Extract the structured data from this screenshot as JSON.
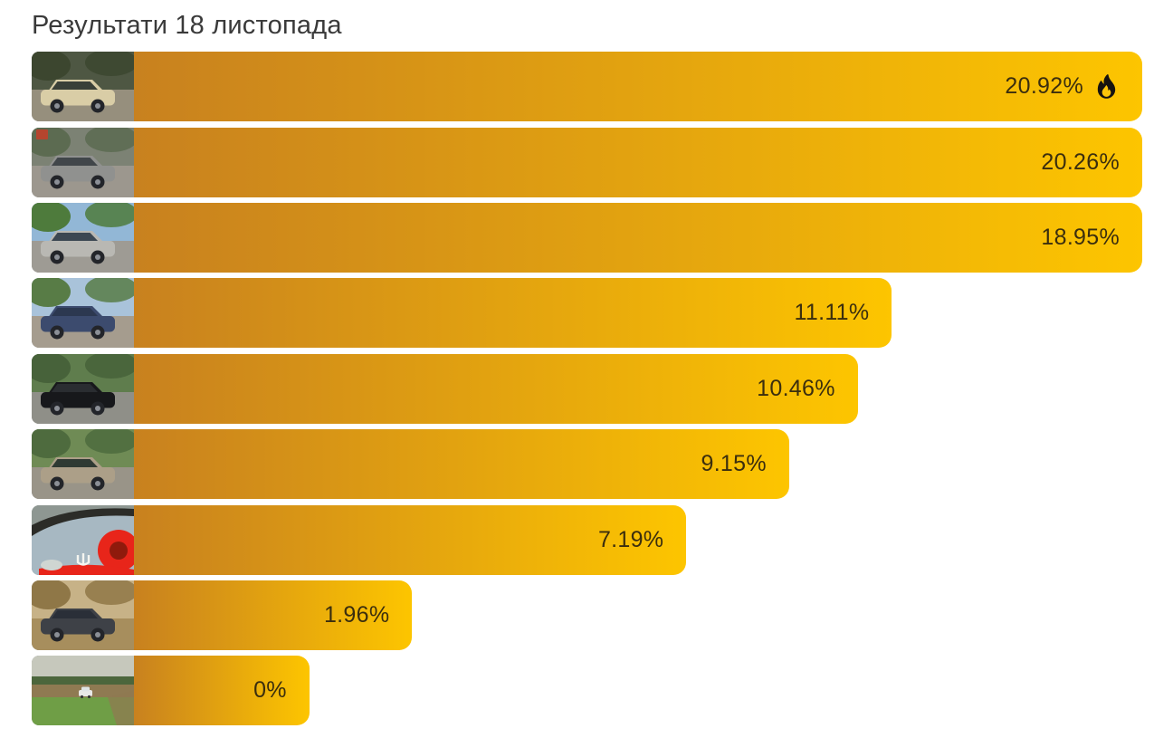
{
  "title": "Результати 18 листопада",
  "chart_data": {
    "type": "bar",
    "orientation": "horizontal",
    "title": "Результати 18 листопада",
    "unit": "%",
    "xlim": [
      0,
      20.92
    ],
    "grid": false,
    "legend": "none",
    "bar_gradient": [
      "#c8811f",
      "#fdc500"
    ],
    "label_color": "#3b2e0e",
    "bar_base_pct": 17.4,
    "bar_scale_pct": 5.2,
    "categories": [
      "beige-sedan-forest-road",
      "grey-golf-hatchback-street",
      "silver-bmw-suv-trees",
      "dark-blue-coupe-pavement",
      "black-hatchback-green-road",
      "beige-sedan-bushes",
      "blue-grey-car-red-wheel-closeup",
      "grey-wagon-autumn-field",
      "distant-white-car-in-field"
    ],
    "values": [
      20.92,
      20.26,
      18.95,
      11.11,
      10.46,
      9.15,
      7.19,
      1.96,
      0
    ],
    "results": [
      {
        "value": 20.92,
        "label": "20.92%",
        "hot": true,
        "thumb": {
          "variant": "car",
          "desc": "beige-sedan-forest-road",
          "sky": "#4e5743",
          "ground": "#968f7d",
          "tree": "#3c462f",
          "car": "#d9cda6",
          "window": "#3a4038"
        }
      },
      {
        "value": 20.26,
        "label": "20.26%",
        "hot": false,
        "thumb": {
          "variant": "car",
          "desc": "grey-golf-hatchback-street",
          "sky": "#7c8274",
          "ground": "#9c978e",
          "tree": "#5c6b51",
          "car": "#90918f",
          "window": "#41464a",
          "accent": "#b5452e"
        }
      },
      {
        "value": 18.95,
        "label": "18.95%",
        "hot": false,
        "thumb": {
          "variant": "car",
          "desc": "silver-bmw-suv-trees",
          "sky": "#92b7d6",
          "ground": "#9e9b94",
          "tree": "#4e7b3c",
          "car": "#b9b8b3",
          "window": "#3c4752"
        }
      },
      {
        "value": 11.11,
        "label": "11.11%",
        "hot": false,
        "thumb": {
          "variant": "car",
          "desc": "dark-blue-coupe-pavement",
          "sky": "#a9c3da",
          "ground": "#a59c8e",
          "tree": "#587c46",
          "car": "#3c4b6e",
          "window": "#2c3850"
        }
      },
      {
        "value": 10.46,
        "label": "10.46%",
        "hot": false,
        "thumb": {
          "variant": "car",
          "desc": "black-hatchback-green-road",
          "sky": "#5f7d4d",
          "ground": "#8f8f88",
          "tree": "#47623a",
          "car": "#17181b",
          "window": "#2a2d31"
        }
      },
      {
        "value": 9.15,
        "label": "9.15%",
        "hot": false,
        "thumb": {
          "variant": "car",
          "desc": "beige-sedan-bushes",
          "sky": "#6f8b55",
          "ground": "#999488",
          "tree": "#4e6b3e",
          "car": "#ac9f88",
          "window": "#2f3a33"
        }
      },
      {
        "value": 7.19,
        "label": "7.19%",
        "hot": false,
        "thumb": {
          "variant": "closeup",
          "desc": "blue-grey-car-red-wheel-closeup",
          "ground": "#8e9792",
          "car": "#a7b8c2",
          "window": "#2c2c28",
          "accent": "#e8251a"
        }
      },
      {
        "value": 1.96,
        "label": "1.96%",
        "hot": false,
        "thumb": {
          "variant": "car",
          "desc": "grey-wagon-autumn-field",
          "sky": "#c7b287",
          "ground": "#a78e5d",
          "tree": "#8f7747",
          "car": "#3e4147",
          "window": "#2a2f38"
        }
      },
      {
        "value": 0,
        "label": "0%",
        "hot": false,
        "thumb": {
          "variant": "distant",
          "desc": "distant-white-car-in-field",
          "sky": "#c6c8bc",
          "tree": "#4c663c",
          "ground": "#8f7a52",
          "grass": "#6f9e46",
          "car": "#e8e8e6"
        }
      }
    ]
  }
}
